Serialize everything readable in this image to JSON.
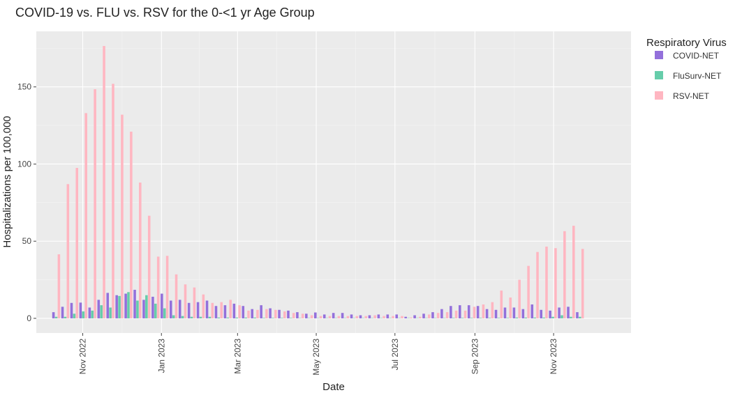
{
  "chart_data": {
    "type": "bar",
    "title": "COVID-19 vs. FLU vs. RSV for the 0-<1 yr Age Group",
    "xlabel": "Date",
    "ylabel": "Hospitalizations per 100,000",
    "ylim": [
      -9.5,
      186
    ],
    "xlim": [
      "2022-09-26",
      "2023-12-31"
    ],
    "grid": true,
    "legend_title": "Respiratory Virus",
    "legend_position": "top-right",
    "x_ticks": [
      {
        "date": "2022-11-01",
        "label": "Nov 2022"
      },
      {
        "date": "2023-01-01",
        "label": "Jan 2023"
      },
      {
        "date": "2023-03-01",
        "label": "Mar 2023"
      },
      {
        "date": "2023-05-01",
        "label": "May 2023"
      },
      {
        "date": "2023-07-01",
        "label": "Jul 2023"
      },
      {
        "date": "2023-09-01",
        "label": "Sep 2023"
      },
      {
        "date": "2023-11-01",
        "label": "Nov 2023"
      }
    ],
    "y_ticks": [
      0,
      50,
      100,
      150
    ],
    "x": [
      "2022-10-08",
      "2022-10-15",
      "2022-10-22",
      "2022-10-29",
      "2022-11-05",
      "2022-11-12",
      "2022-11-19",
      "2022-11-26",
      "2022-12-03",
      "2022-12-10",
      "2022-12-17",
      "2022-12-24",
      "2022-12-31",
      "2023-01-07",
      "2023-01-14",
      "2023-01-21",
      "2023-01-28",
      "2023-02-04",
      "2023-02-11",
      "2023-02-18",
      "2023-02-25",
      "2023-03-04",
      "2023-03-11",
      "2023-03-18",
      "2023-03-25",
      "2023-04-01",
      "2023-04-08",
      "2023-04-15",
      "2023-04-22",
      "2023-04-29",
      "2023-05-06",
      "2023-05-13",
      "2023-05-20",
      "2023-05-27",
      "2023-06-03",
      "2023-06-10",
      "2023-06-17",
      "2023-06-24",
      "2023-07-01",
      "2023-07-08",
      "2023-07-15",
      "2023-07-22",
      "2023-07-29",
      "2023-08-05",
      "2023-08-12",
      "2023-08-19",
      "2023-08-26",
      "2023-09-02",
      "2023-09-09",
      "2023-09-16",
      "2023-09-23",
      "2023-09-30",
      "2023-10-07",
      "2023-10-14",
      "2023-10-21",
      "2023-10-28",
      "2023-11-04",
      "2023-11-11",
      "2023-11-18"
    ],
    "series": [
      {
        "name": "COVID-NET",
        "color": "#9370DB",
        "values": [
          4.0,
          7.5,
          10.0,
          10.2,
          7.0,
          12.0,
          16.5,
          15.0,
          16.0,
          18.5,
          12.0,
          14.0,
          16.0,
          11.5,
          12.0,
          10.0,
          10.5,
          11.5,
          8.0,
          8.5,
          9.5,
          8.0,
          6.0,
          8.5,
          6.5,
          5.5,
          5.0,
          4.0,
          3.0,
          3.8,
          2.5,
          3.5,
          3.5,
          2.5,
          2.0,
          2.0,
          2.5,
          2.5,
          2.5,
          1.0,
          2.0,
          3.0,
          4.0,
          6.0,
          8.0,
          8.5,
          8.5,
          8.0,
          6.0,
          5.5,
          7.0,
          7.0,
          6.0,
          9.0,
          5.5,
          5.0,
          7.0,
          7.5,
          4.0
        ]
      },
      {
        "name": "FluSurv-NET",
        "color": "#66CDAA",
        "values": [
          1.0,
          1.0,
          3.0,
          4.5,
          5.0,
          8.5,
          7.0,
          14.5,
          17.0,
          11.5,
          15.0,
          9.5,
          6.5,
          2.0,
          1.5,
          1.0,
          1.0,
          1.0,
          0.5,
          0.5,
          0.5,
          0.5,
          0.5,
          0.3,
          0.3,
          0.3,
          0.3,
          0.2,
          0.2,
          0.2,
          0.2,
          0.2,
          0.2,
          0.2,
          0.2,
          0.2,
          0.2,
          0.2,
          0.2,
          0.2,
          0.2,
          0.2,
          0.2,
          0.2,
          0.3,
          0.3,
          0.3,
          0.3,
          0.3,
          0.3,
          0.3,
          0.5,
          0.5,
          0.5,
          0.5,
          1.0,
          2.0,
          1.0,
          1.0
        ]
      },
      {
        "name": "RSV-NET",
        "color": "#FFB6C1",
        "values": [
          41.5,
          87.0,
          97.5,
          133.0,
          148.5,
          176.5,
          152.0,
          132.0,
          121.0,
          88.0,
          66.5,
          40.0,
          40.5,
          28.5,
          22.0,
          20.0,
          15.5,
          10.0,
          10.5,
          12.0,
          8.5,
          5.0,
          5.5,
          6.0,
          5.5,
          4.5,
          3.5,
          3.0,
          2.0,
          1.5,
          1.5,
          1.5,
          1.5,
          1.5,
          1.5,
          2.0,
          1.5,
          1.5,
          1.5,
          0.5,
          1.0,
          2.5,
          3.5,
          4.0,
          5.0,
          5.0,
          7.5,
          9.0,
          10.5,
          18.0,
          13.5,
          25.0,
          34.0,
          43.0,
          46.5,
          45.5,
          56.5,
          60.0,
          45.0
        ]
      }
    ]
  }
}
